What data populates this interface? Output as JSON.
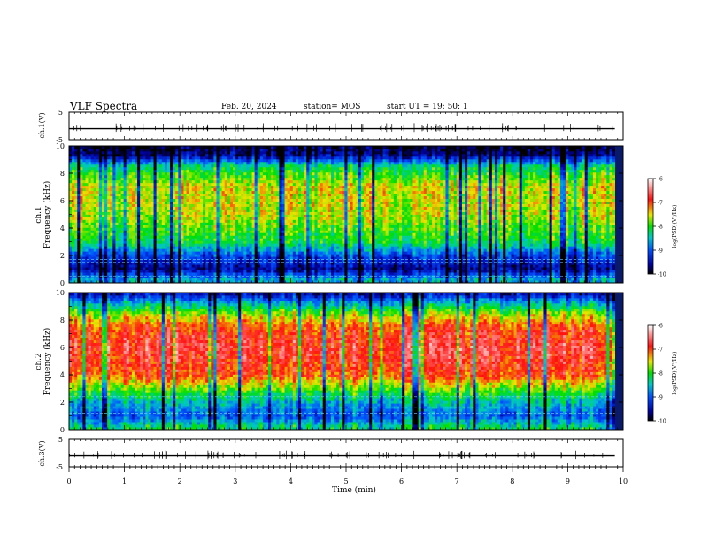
{
  "header": {
    "title": "VLF Spectra",
    "date": "Feb. 20, 2024",
    "station": "station= MOS",
    "start": "start  UT  =   19: 50: 1"
  },
  "chart_data": [
    {
      "type": "line",
      "panel": "ch1-waveform",
      "ylabel": "ch.1(V)",
      "ylim": [
        -5,
        5
      ],
      "yticks": [
        "5",
        "-5"
      ],
      "x_range_min": [
        0,
        9.85
      ],
      "level": -1,
      "spikes": "sparse vertical impulses along trace"
    },
    {
      "type": "heatmap",
      "panel": "ch1-spectrogram",
      "ylabel_line1": "ch.1",
      "ylabel_line2": "Frequency (kHz)",
      "ylim": [
        0,
        10
      ],
      "yticks": [
        "0",
        "2",
        "4",
        "6",
        "8",
        "10"
      ],
      "x_range_min": [
        0,
        9.85
      ],
      "colorbar": {
        "label": "log(PSD)(V²/Hz)",
        "range": [
          -10,
          -6
        ],
        "ticks": [
          "-6",
          "-7",
          "-8",
          "-9",
          "-10"
        ]
      },
      "band_profile_kHz": [
        {
          "f": 0.3,
          "level": -8.6
        },
        {
          "f": 1.0,
          "level": -9.6
        },
        {
          "f": 2.0,
          "level": -9.1
        },
        {
          "f": 3.0,
          "level": -8.1
        },
        {
          "f": 5.0,
          "level": -7.6
        },
        {
          "f": 7.0,
          "level": -7.5
        },
        {
          "f": 8.5,
          "level": -8.2
        },
        {
          "f": 9.3,
          "level": -9.6
        },
        {
          "f": 10.0,
          "level": -9.9
        }
      ],
      "lines_kHz": [
        0.5,
        1.5,
        1.7
      ]
    },
    {
      "type": "heatmap",
      "panel": "ch2-spectrogram",
      "ylabel_line1": "ch.2",
      "ylabel_line2": "Frequency (kHz)",
      "ylim": [
        0,
        10
      ],
      "yticks": [
        "0",
        "2",
        "4",
        "6",
        "8",
        "10"
      ],
      "x_range_min": [
        0,
        9.85
      ],
      "colorbar": {
        "label": "log(PSD)(V²/Hz)",
        "range": [
          -10,
          -6
        ],
        "ticks": [
          "-6",
          "-7",
          "-8",
          "-9",
          "-10"
        ]
      },
      "band_profile_kHz": [
        {
          "f": 0.2,
          "level": -8.2
        },
        {
          "f": 1.0,
          "level": -9.0
        },
        {
          "f": 2.0,
          "level": -8.5
        },
        {
          "f": 3.0,
          "level": -7.8
        },
        {
          "f": 4.0,
          "level": -7.0
        },
        {
          "f": 6.0,
          "level": -6.7
        },
        {
          "f": 7.5,
          "level": -7.0
        },
        {
          "f": 8.5,
          "level": -7.7
        },
        {
          "f": 9.3,
          "level": -8.6
        },
        {
          "f": 10.0,
          "level": -9.6
        }
      ],
      "lines_kHz": [
        1.2,
        1.6,
        2.4
      ]
    },
    {
      "type": "line",
      "panel": "ch3-waveform",
      "ylabel": "ch.3(V)",
      "ylim": [
        -5,
        5
      ],
      "yticks": [
        "5",
        "-5"
      ],
      "x_range_min": [
        0,
        9.85
      ],
      "level": -1,
      "spikes": "sparse vertical impulses along trace"
    }
  ],
  "xaxis": {
    "label": "Time (min)",
    "range": [
      0,
      10
    ],
    "ticks": [
      "0",
      "1",
      "2",
      "3",
      "4",
      "5",
      "6",
      "7",
      "8",
      "9",
      "10"
    ]
  }
}
